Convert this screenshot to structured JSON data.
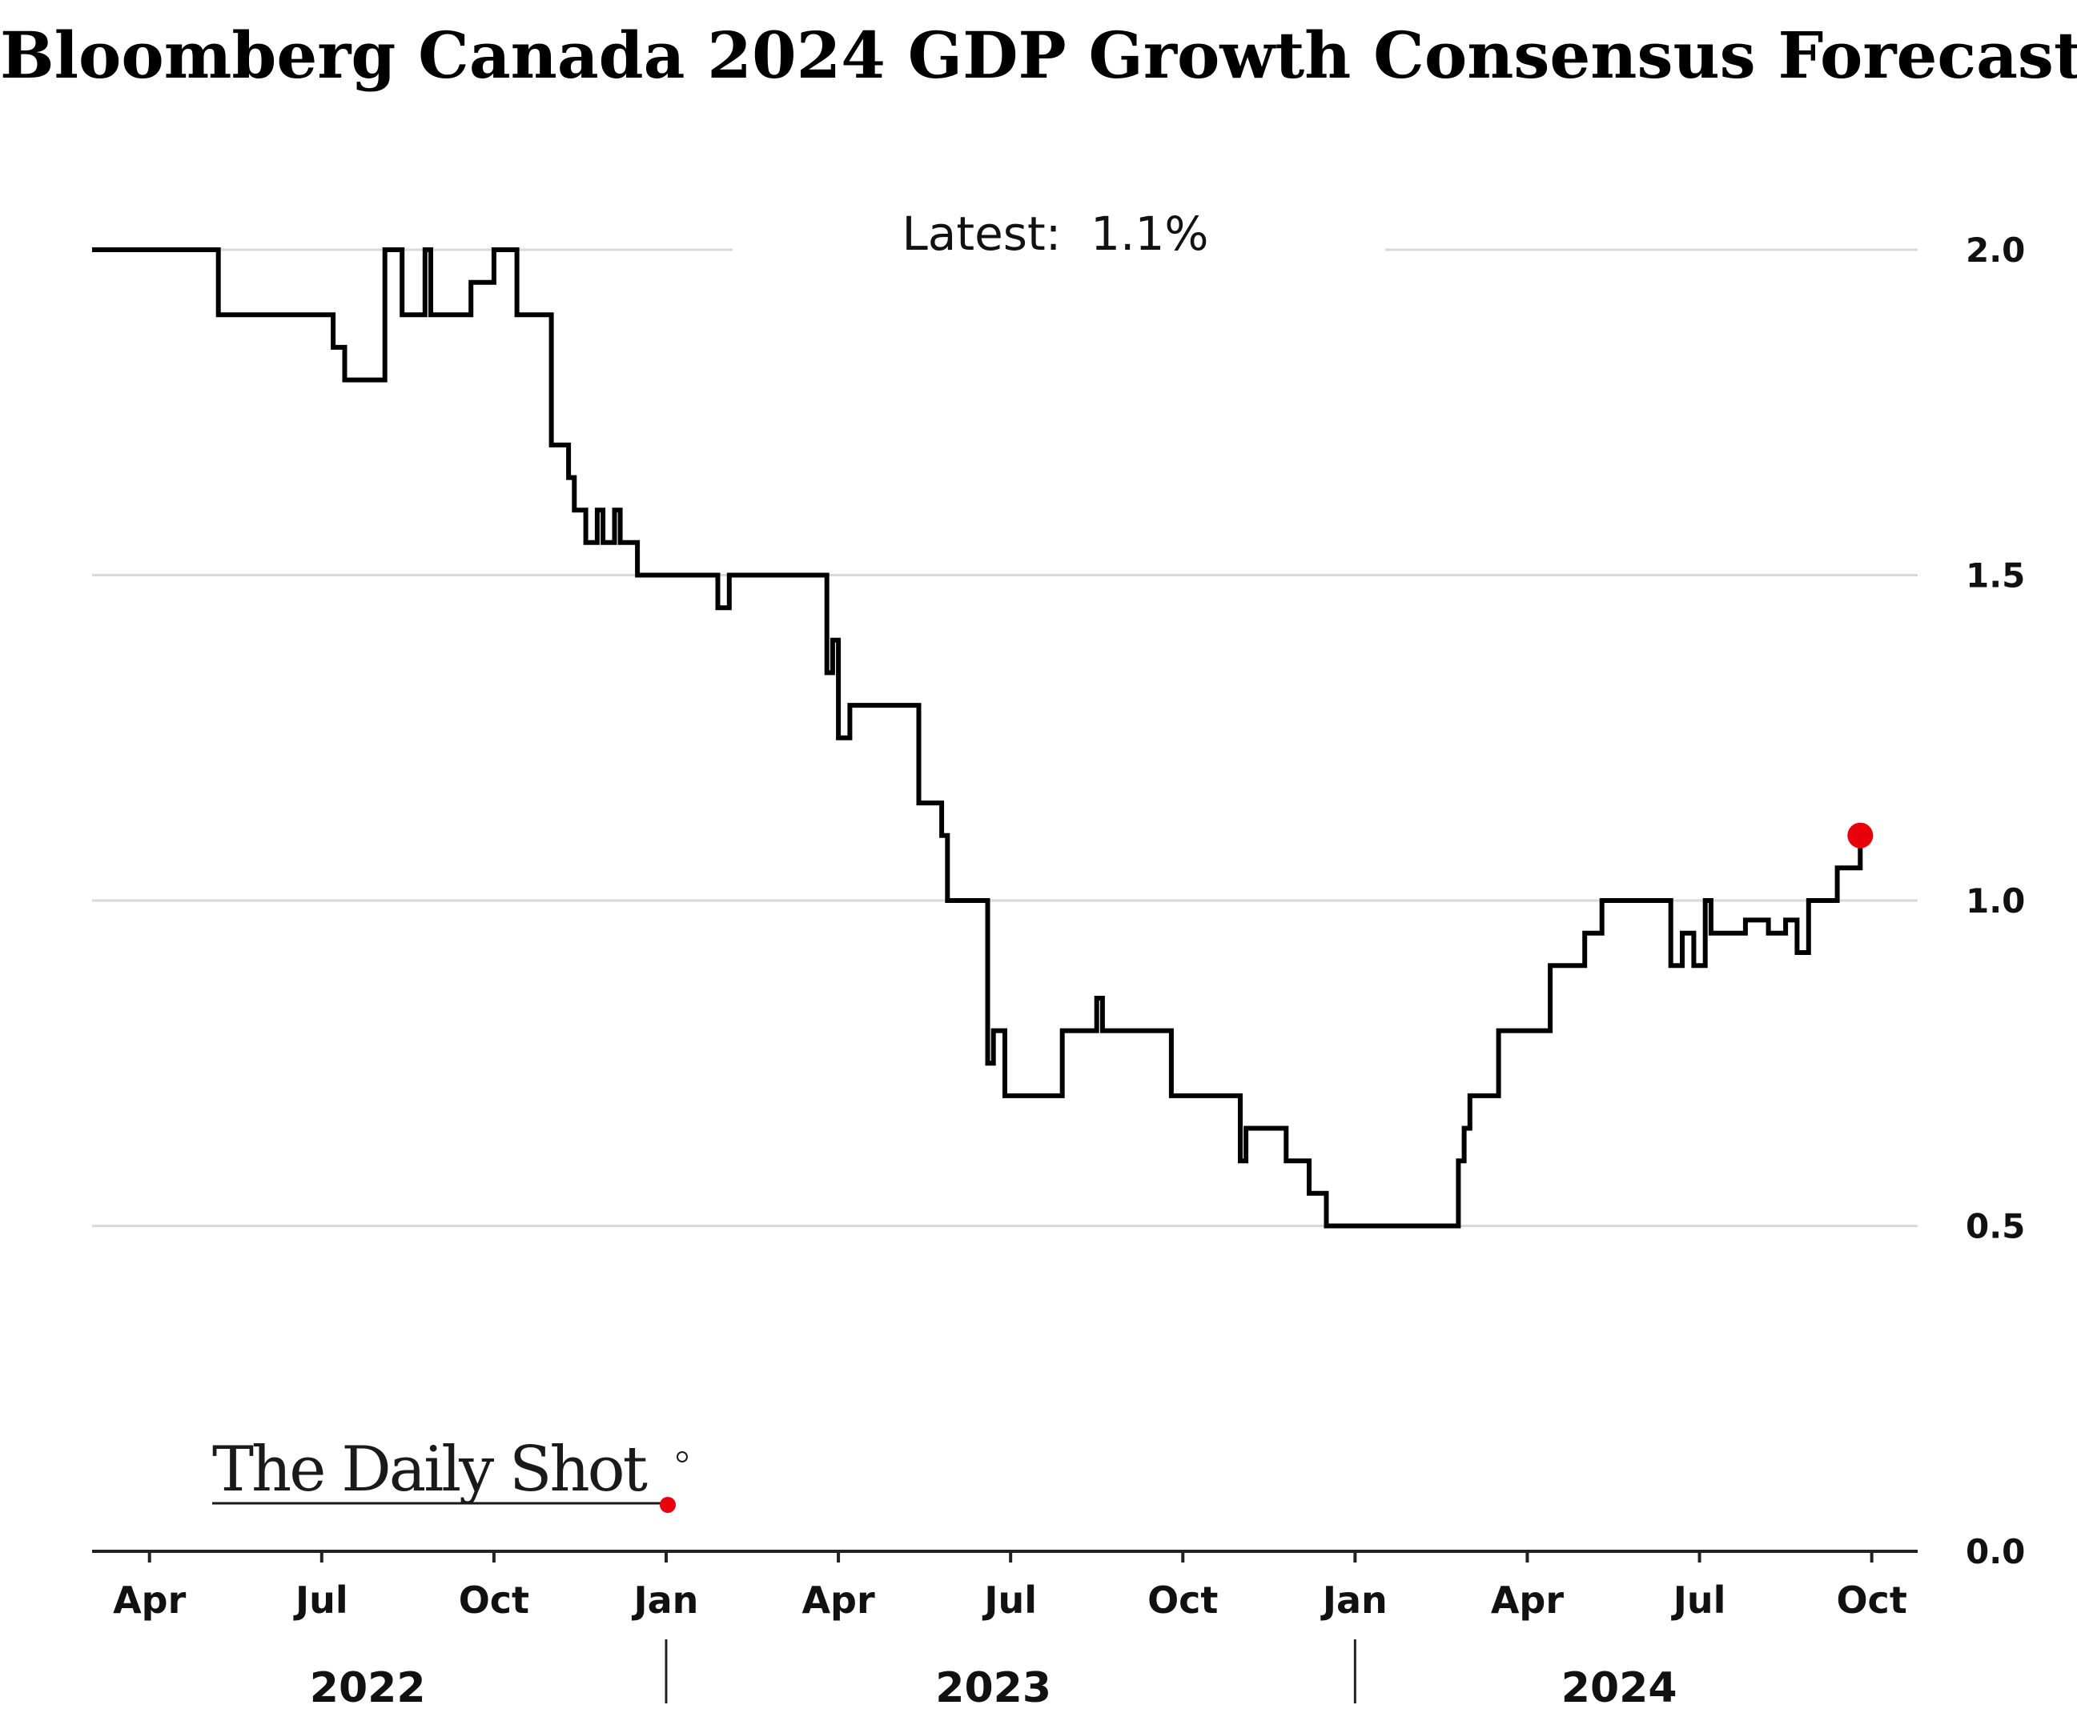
{
  "chart_data": {
    "type": "line",
    "title": "Bloomberg Canada 2024 GDP Growth Consensus Forecast",
    "annotation": "Latest:  1.1%",
    "watermark": "The Daily Shot",
    "xlabel": "",
    "ylabel": "",
    "ylim": [
      0.0,
      2.0
    ],
    "yticks": [
      "2.0",
      "1.5",
      "1.0",
      "0.5",
      "0.0"
    ],
    "ytick_values": [
      2.0,
      1.5,
      1.0,
      0.5,
      0.0
    ],
    "grid": "horizontal",
    "x_unit": "months since 2022-03-01",
    "xlim": [
      0,
      31.8
    ],
    "xticks": [
      {
        "label": "Apr",
        "x": 1
      },
      {
        "label": "Jul",
        "x": 4
      },
      {
        "label": "Oct",
        "x": 7
      },
      {
        "label": "Jan",
        "x": 10
      },
      {
        "label": "Apr",
        "x": 13
      },
      {
        "label": "Jul",
        "x": 16
      },
      {
        "label": "Oct",
        "x": 19
      },
      {
        "label": "Jan",
        "x": 22
      },
      {
        "label": "Apr",
        "x": 25
      },
      {
        "label": "Jul",
        "x": 28
      },
      {
        "label": "Oct",
        "x": 31
      }
    ],
    "years": [
      {
        "label": "2022",
        "x": 4.8
      },
      {
        "label": "2023",
        "x": 15.7
      },
      {
        "label": "2024",
        "x": 26.6
      }
    ],
    "year_dividers": [
      10,
      22
    ],
    "series": [
      {
        "name": "Canada 2024 GDP Growth Consensus",
        "color": "#000000",
        "points": [
          [
            0.0,
            2.0
          ],
          [
            2.2,
            2.0
          ],
          [
            2.2,
            1.9
          ],
          [
            4.2,
            1.9
          ],
          [
            4.2,
            1.85
          ],
          [
            4.4,
            1.85
          ],
          [
            4.4,
            1.8
          ],
          [
            5.1,
            1.8
          ],
          [
            5.1,
            2.0
          ],
          [
            5.4,
            2.0
          ],
          [
            5.4,
            1.9
          ],
          [
            5.8,
            1.9
          ],
          [
            5.8,
            2.0
          ],
          [
            5.9,
            2.0
          ],
          [
            5.9,
            1.9
          ],
          [
            6.6,
            1.9
          ],
          [
            6.6,
            1.95
          ],
          [
            7.0,
            1.95
          ],
          [
            7.0,
            2.0
          ],
          [
            7.4,
            2.0
          ],
          [
            7.4,
            1.9
          ],
          [
            8.0,
            1.9
          ],
          [
            8.0,
            1.7
          ],
          [
            8.3,
            1.7
          ],
          [
            8.3,
            1.65
          ],
          [
            8.4,
            1.65
          ],
          [
            8.4,
            1.6
          ],
          [
            8.6,
            1.6
          ],
          [
            8.6,
            1.55
          ],
          [
            8.8,
            1.55
          ],
          [
            8.8,
            1.6
          ],
          [
            8.9,
            1.6
          ],
          [
            8.9,
            1.55
          ],
          [
            9.1,
            1.55
          ],
          [
            9.1,
            1.6
          ],
          [
            9.2,
            1.6
          ],
          [
            9.2,
            1.55
          ],
          [
            9.5,
            1.55
          ],
          [
            9.5,
            1.5
          ],
          [
            10.9,
            1.5
          ],
          [
            10.9,
            1.45
          ],
          [
            11.1,
            1.45
          ],
          [
            11.1,
            1.5
          ],
          [
            12.8,
            1.5
          ],
          [
            12.8,
            1.35
          ],
          [
            12.9,
            1.35
          ],
          [
            12.9,
            1.4
          ],
          [
            13.0,
            1.4
          ],
          [
            13.0,
            1.25
          ],
          [
            13.2,
            1.25
          ],
          [
            13.2,
            1.3
          ],
          [
            14.4,
            1.3
          ],
          [
            14.4,
            1.15
          ],
          [
            14.8,
            1.15
          ],
          [
            14.8,
            1.1
          ],
          [
            14.9,
            1.1
          ],
          [
            14.9,
            1.0
          ],
          [
            15.6,
            1.0
          ],
          [
            15.6,
            0.75
          ],
          [
            15.7,
            0.75
          ],
          [
            15.7,
            0.8
          ],
          [
            15.9,
            0.8
          ],
          [
            15.9,
            0.7
          ],
          [
            16.9,
            0.7
          ],
          [
            16.9,
            0.8
          ],
          [
            17.5,
            0.8
          ],
          [
            17.5,
            0.85
          ],
          [
            17.6,
            0.85
          ],
          [
            17.6,
            0.8
          ],
          [
            18.8,
            0.8
          ],
          [
            18.8,
            0.7
          ],
          [
            20.0,
            0.7
          ],
          [
            20.0,
            0.6
          ],
          [
            20.1,
            0.6
          ],
          [
            20.1,
            0.65
          ],
          [
            20.8,
            0.65
          ],
          [
            20.8,
            0.6
          ],
          [
            21.2,
            0.6
          ],
          [
            21.2,
            0.55
          ],
          [
            21.5,
            0.55
          ],
          [
            21.5,
            0.5
          ],
          [
            23.8,
            0.5
          ],
          [
            23.8,
            0.6
          ],
          [
            23.9,
            0.6
          ],
          [
            23.9,
            0.65
          ],
          [
            24.0,
            0.65
          ],
          [
            24.0,
            0.7
          ],
          [
            24.5,
            0.7
          ],
          [
            24.5,
            0.8
          ],
          [
            25.4,
            0.8
          ],
          [
            25.4,
            0.9
          ],
          [
            26.0,
            0.9
          ],
          [
            26.0,
            0.95
          ],
          [
            26.3,
            0.95
          ],
          [
            26.3,
            1.0
          ],
          [
            27.5,
            1.0
          ],
          [
            27.5,
            0.9
          ],
          [
            27.7,
            0.9
          ],
          [
            27.7,
            0.95
          ],
          [
            27.9,
            0.95
          ],
          [
            27.9,
            0.9
          ],
          [
            28.1,
            0.9
          ],
          [
            28.1,
            1.0
          ],
          [
            28.2,
            1.0
          ],
          [
            28.2,
            0.95
          ],
          [
            28.8,
            0.95
          ],
          [
            28.8,
            0.97
          ],
          [
            29.2,
            0.97
          ],
          [
            29.2,
            0.95
          ],
          [
            29.5,
            0.95
          ],
          [
            29.5,
            0.97
          ],
          [
            29.7,
            0.97
          ],
          [
            29.7,
            0.92
          ],
          [
            29.9,
            0.92
          ],
          [
            29.9,
            1.0
          ],
          [
            30.4,
            1.0
          ],
          [
            30.4,
            1.05
          ],
          [
            30.8,
            1.05
          ],
          [
            30.8,
            1.1
          ]
        ]
      }
    ],
    "latest": {
      "x": 30.8,
      "y": 1.1,
      "color": "#e8000b"
    }
  }
}
